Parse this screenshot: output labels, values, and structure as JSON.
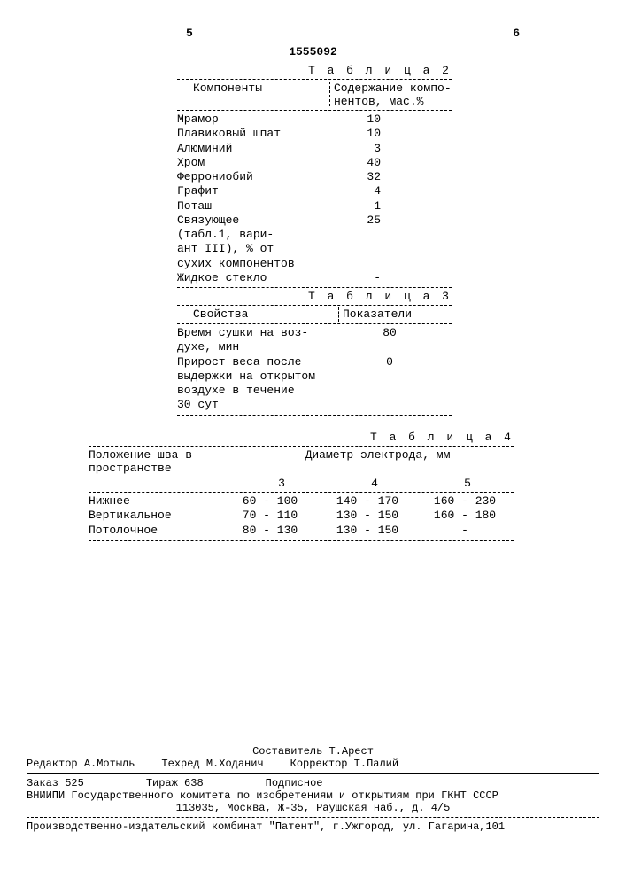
{
  "page_num_left": "5",
  "page_num_right": "6",
  "doc_number": "1555092",
  "table2": {
    "title": "Т а б л и ц а 2",
    "header_col1": "Компоненты",
    "header_col2": "Содержание компо-\nнентов, мас.%",
    "rows": [
      {
        "name": "Мрамор",
        "val": "10"
      },
      {
        "name": "Плавиковый шпат",
        "val": "10"
      },
      {
        "name": "Алюминий",
        "val": "3"
      },
      {
        "name": "Хром",
        "val": "40"
      },
      {
        "name": "Феррониобий",
        "val": "32"
      },
      {
        "name": "Графит",
        "val": "4"
      },
      {
        "name": "Поташ",
        "val": "1"
      },
      {
        "name": "Связующее\n(табл.1, вари-\nант III), % от\nсухих компонентов",
        "val": "25"
      },
      {
        "name": "Жидкое стекло",
        "val": "-"
      }
    ]
  },
  "table3": {
    "title": "Т а б л и ц а 3",
    "header_col1": "Свойства",
    "header_col2": "Показатели",
    "rows": [
      {
        "name": "Время сушки на воз-\nдухе, мин",
        "val": "80"
      },
      {
        "name": "Прирост веса после\nвыдержки на открытом\nвоздухе в течение\n30 сут",
        "val": "0"
      }
    ]
  },
  "table4": {
    "title": "Т а б л и ц а 4",
    "header_col1": "Положение шва в\nпространстве",
    "header_col2": "Диаметр электрода, мм",
    "sub_cols": [
      "3",
      "4",
      "5"
    ],
    "rows": [
      {
        "name": "Нижнее",
        "v": [
          "60 - 100",
          "140 - 170",
          "160 - 230"
        ]
      },
      {
        "name": "Вертикальное",
        "v": [
          "70 - 110",
          "130 - 150",
          "160 - 180"
        ]
      },
      {
        "name": "Потолочное",
        "v": [
          "80 - 130",
          "130 - 150",
          "-"
        ]
      }
    ]
  },
  "footer": {
    "compiler_label": "Составитель",
    "compiler": "Т.Арест",
    "editor_label": "Редактор",
    "editor": "А.Мотыль",
    "tech_label": "Техред",
    "tech": "М.Ходанич",
    "corrector_label": "Корректор",
    "corrector": "Т.Палий",
    "order_label": "Заказ",
    "order": "525",
    "tirage_label": "Тираж",
    "tirage": "638",
    "subscription": "Подписное",
    "org_line1": "ВНИИПИ Государственного комитета по изобретениям и открытиям при ГКНТ СССР",
    "org_line2": "113035, Москва, Ж-35, Раушская наб., д. 4/5",
    "prod_line": "Производственно-издательский комбинат \"Патент\", г.Ужгород, ул. Гагарина,101"
  }
}
